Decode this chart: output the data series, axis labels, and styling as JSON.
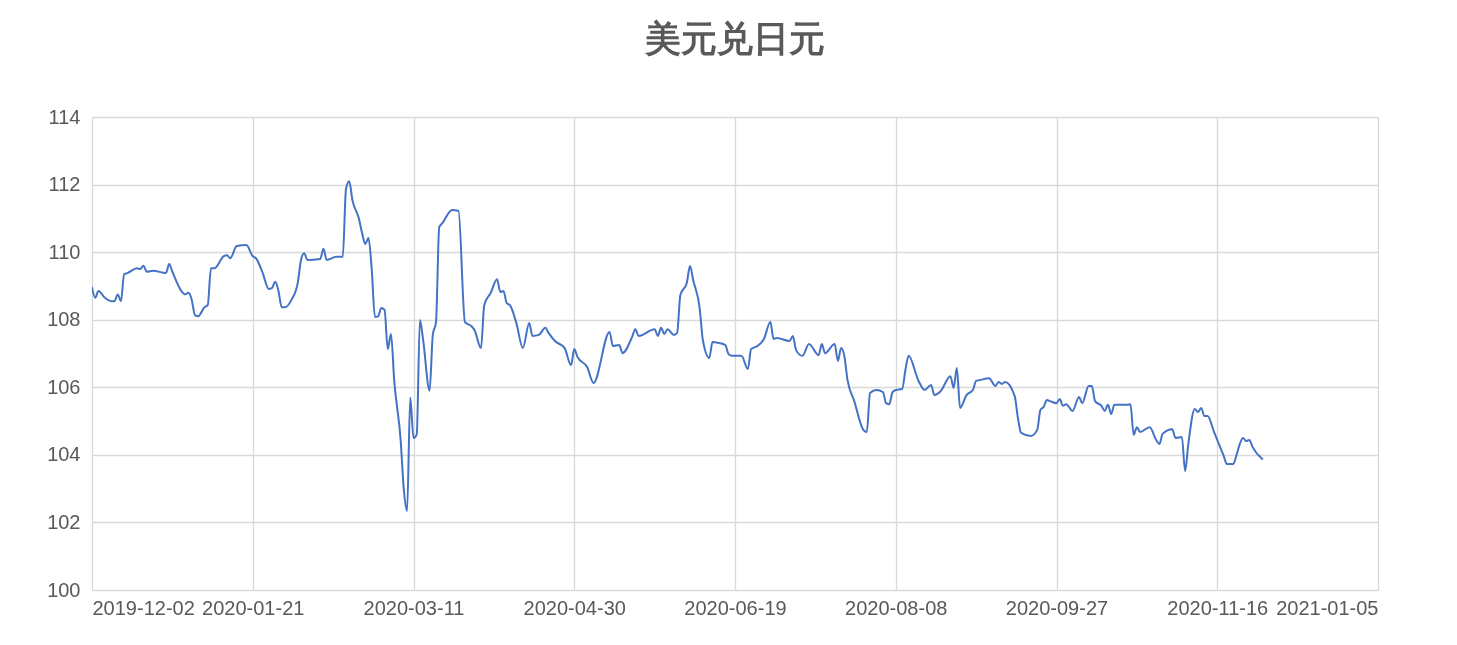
{
  "chart_data": {
    "type": "line",
    "title": "美元兑日元",
    "x": [
      "2019-12-02",
      "2019-12-03",
      "2019-12-04",
      "2019-12-06",
      "2019-12-08",
      "2019-12-09",
      "2019-12-10",
      "2019-12-11",
      "2019-12-12",
      "2019-12-13",
      "2019-12-16",
      "2019-12-17",
      "2019-12-18",
      "2019-12-19",
      "2019-12-21",
      "2019-12-25",
      "2019-12-26",
      "2019-12-27",
      "2019-12-30",
      "2019-12-31",
      "2020-01-01",
      "2020-01-02",
      "2020-01-03",
      "2020-01-04",
      "2020-01-06",
      "2020-01-07",
      "2020-01-08",
      "2020-01-09",
      "2020-01-12",
      "2020-01-13",
      "2020-01-14",
      "2020-01-16",
      "2020-01-19",
      "2020-01-21",
      "2020-01-22",
      "2020-01-24",
      "2020-01-26",
      "2020-01-27",
      "2020-01-28",
      "2020-01-29",
      "2020-01-30",
      "2020-01-31",
      "2020-02-02",
      "2020-02-04",
      "2020-02-05",
      "2020-02-06",
      "2020-02-07",
      "2020-02-11",
      "2020-02-12",
      "2020-02-13",
      "2020-02-16",
      "2020-02-18",
      "2020-02-19",
      "2020-02-20",
      "2020-02-21",
      "2020-02-23",
      "2020-02-24",
      "2020-02-25",
      "2020-02-26",
      "2020-02-27",
      "2020-02-28",
      "2020-02-29",
      "2020-03-01",
      "2020-03-02",
      "2020-03-03",
      "2020-03-04",
      "2020-03-05",
      "2020-03-07",
      "2020-03-08",
      "2020-03-09",
      "2020-03-10",
      "2020-03-11",
      "2020-03-12",
      "2020-03-13",
      "2020-03-14",
      "2020-03-16",
      "2020-03-17",
      "2020-03-18",
      "2020-03-19",
      "2020-03-20",
      "2020-03-23",
      "2020-03-25",
      "2020-03-27",
      "2020-03-29",
      "2020-03-30",
      "2020-04-01",
      "2020-04-02",
      "2020-04-04",
      "2020-04-06",
      "2020-04-07",
      "2020-04-08",
      "2020-04-09",
      "2020-04-10",
      "2020-04-12",
      "2020-04-14",
      "2020-04-16",
      "2020-04-17",
      "2020-04-19",
      "2020-04-21",
      "2020-04-22",
      "2020-04-24",
      "2020-04-27",
      "2020-04-29",
      "2020-04-30",
      "2020-05-01",
      "2020-05-04",
      "2020-05-06",
      "2020-05-11",
      "2020-05-12",
      "2020-05-14",
      "2020-05-15",
      "2020-05-18",
      "2020-05-19",
      "2020-05-20",
      "2020-05-25",
      "2020-05-26",
      "2020-05-27",
      "2020-05-28",
      "2020-05-29",
      "2020-05-31",
      "2020-06-01",
      "2020-06-02",
      "2020-06-04",
      "2020-06-05",
      "2020-06-06",
      "2020-06-08",
      "2020-06-09",
      "2020-06-11",
      "2020-06-12",
      "2020-06-14",
      "2020-06-16",
      "2020-06-17",
      "2020-06-18",
      "2020-06-21",
      "2020-06-23",
      "2020-06-24",
      "2020-06-26",
      "2020-06-28",
      "2020-06-30",
      "2020-07-01",
      "2020-07-02",
      "2020-07-06",
      "2020-07-07",
      "2020-07-08",
      "2020-07-10",
      "2020-07-12",
      "2020-07-15",
      "2020-07-16",
      "2020-07-17",
      "2020-07-20",
      "2020-07-21",
      "2020-07-22",
      "2020-07-23",
      "2020-07-24",
      "2020-07-26",
      "2020-07-29",
      "2020-07-30",
      "2020-07-31",
      "2020-08-02",
      "2020-08-04",
      "2020-08-05",
      "2020-08-06",
      "2020-08-07",
      "2020-08-08",
      "2020-08-10",
      "2020-08-11",
      "2020-08-12",
      "2020-08-15",
      "2020-08-17",
      "2020-08-19",
      "2020-08-20",
      "2020-08-22",
      "2020-08-25",
      "2020-08-26",
      "2020-08-27",
      "2020-08-28",
      "2020-08-30",
      "2020-09-01",
      "2020-09-02",
      "2020-09-03",
      "2020-09-06",
      "2020-09-08",
      "2020-09-09",
      "2020-09-10",
      "2020-09-11",
      "2020-09-14",
      "2020-09-15",
      "2020-09-16",
      "2020-09-19",
      "2020-09-21",
      "2020-09-22",
      "2020-09-23",
      "2020-09-24",
      "2020-09-25",
      "2020-09-27",
      "2020-09-28",
      "2020-09-29",
      "2020-09-30",
      "2020-10-02",
      "2020-10-04",
      "2020-10-05",
      "2020-10-07",
      "2020-10-08",
      "2020-10-09",
      "2020-10-11",
      "2020-10-12",
      "2020-10-13",
      "2020-10-14",
      "2020-10-15",
      "2020-10-19",
      "2020-10-20",
      "2020-10-21",
      "2020-10-22",
      "2020-10-23",
      "2020-10-26",
      "2020-10-28",
      "2020-10-29",
      "2020-10-30",
      "2020-11-02",
      "2020-11-03",
      "2020-11-05",
      "2020-11-06",
      "2020-11-07",
      "2020-11-09",
      "2020-11-10",
      "2020-11-11",
      "2020-11-12",
      "2020-11-13",
      "2020-11-15",
      "2020-11-18",
      "2020-11-19",
      "2020-11-21",
      "2020-11-22",
      "2020-11-23",
      "2020-11-24",
      "2020-11-25",
      "2020-11-26",
      "2020-11-27",
      "2020-11-30"
    ],
    "series": [
      {
        "color": "#4472c4",
        "values": [
          108.95,
          108.65,
          108.85,
          108.65,
          108.55,
          108.55,
          108.75,
          108.55,
          109.35,
          109.38,
          109.52,
          109.5,
          109.6,
          109.42,
          109.45,
          109.38,
          109.65,
          109.42,
          108.82,
          108.75,
          108.8,
          108.6,
          108.14,
          108.1,
          108.37,
          108.43,
          109.52,
          109.52,
          109.88,
          109.91,
          109.82,
          110.18,
          110.21,
          109.88,
          109.82,
          109.41,
          108.91,
          108.94,
          109.12,
          108.85,
          108.37,
          108.37,
          108.58,
          109.09,
          109.77,
          109.97,
          109.77,
          109.8,
          110.1,
          109.77,
          109.86,
          109.86,
          111.87,
          112.1,
          111.54,
          111.0,
          110.57,
          110.24,
          110.42,
          109.5,
          108.08,
          108.1,
          108.35,
          108.29,
          107.13,
          107.58,
          106.2,
          104.44,
          102.96,
          102.34,
          105.7,
          104.5,
          104.6,
          107.99,
          107.4,
          105.9,
          107.55,
          107.93,
          110.74,
          110.86,
          111.25,
          111.22,
          107.93,
          107.81,
          107.69,
          107.16,
          108.43,
          108.79,
          109.2,
          108.82,
          108.85,
          108.49,
          108.43,
          107.9,
          107.16,
          107.9,
          107.52,
          107.55,
          107.76,
          107.61,
          107.37,
          107.16,
          106.66,
          107.13,
          106.9,
          106.6,
          106.13,
          107.64,
          107.22,
          107.25,
          107.01,
          107.49,
          107.72,
          107.52,
          107.72,
          107.52,
          107.76,
          107.58,
          107.72,
          107.55,
          107.61,
          108.73,
          109.09,
          109.59,
          109.17,
          108.35,
          107.4,
          106.87,
          107.34,
          107.31,
          107.25,
          106.98,
          106.93,
          106.93,
          106.54,
          107.13,
          107.22,
          107.43,
          107.93,
          107.43,
          107.46,
          107.37,
          107.52,
          107.1,
          106.93,
          107.28,
          106.95,
          107.28,
          107.01,
          107.28,
          106.78,
          107.16,
          106.93,
          106.21,
          105.62,
          104.73,
          104.68,
          105.83,
          105.92,
          105.86,
          105.53,
          105.5,
          105.86,
          105.92,
          105.95,
          106.51,
          106.93,
          106.21,
          105.92,
          106.07,
          105.77,
          105.89,
          106.33,
          105.98,
          106.57,
          105.39,
          105.77,
          105.92,
          106.19,
          106.21,
          106.27,
          106.04,
          106.16,
          106.1,
          106.16,
          105.74,
          105.09,
          104.65,
          104.56,
          104.74,
          105.33,
          105.42,
          105.62,
          105.59,
          105.53,
          105.65,
          105.45,
          105.5,
          105.3,
          105.71,
          105.53,
          106.04,
          106.04,
          105.59,
          105.45,
          105.3,
          105.48,
          105.21,
          105.48,
          105.48,
          105.5,
          104.59,
          104.82,
          104.68,
          104.82,
          104.44,
          104.32,
          104.62,
          104.76,
          104.5,
          104.53,
          103.52,
          104.32,
          105.36,
          105.27,
          105.39,
          105.15,
          105.15,
          104.68,
          103.97,
          103.73,
          103.73,
          104.0,
          104.32,
          104.5,
          104.41,
          104.44,
          104.23,
          103.88
        ]
      }
    ],
    "xlim": [
      "2019-12-02",
      "2021-01-05"
    ],
    "xticks": [
      "2019-12-02",
      "2020-01-21",
      "2020-03-11",
      "2020-04-30",
      "2020-06-19",
      "2020-08-08",
      "2020-09-27",
      "2020-11-16",
      "2021-01-05"
    ],
    "ylim": [
      100,
      114
    ],
    "yticks": [
      100,
      102,
      104,
      106,
      108,
      110,
      112,
      114
    ],
    "grid": true
  }
}
